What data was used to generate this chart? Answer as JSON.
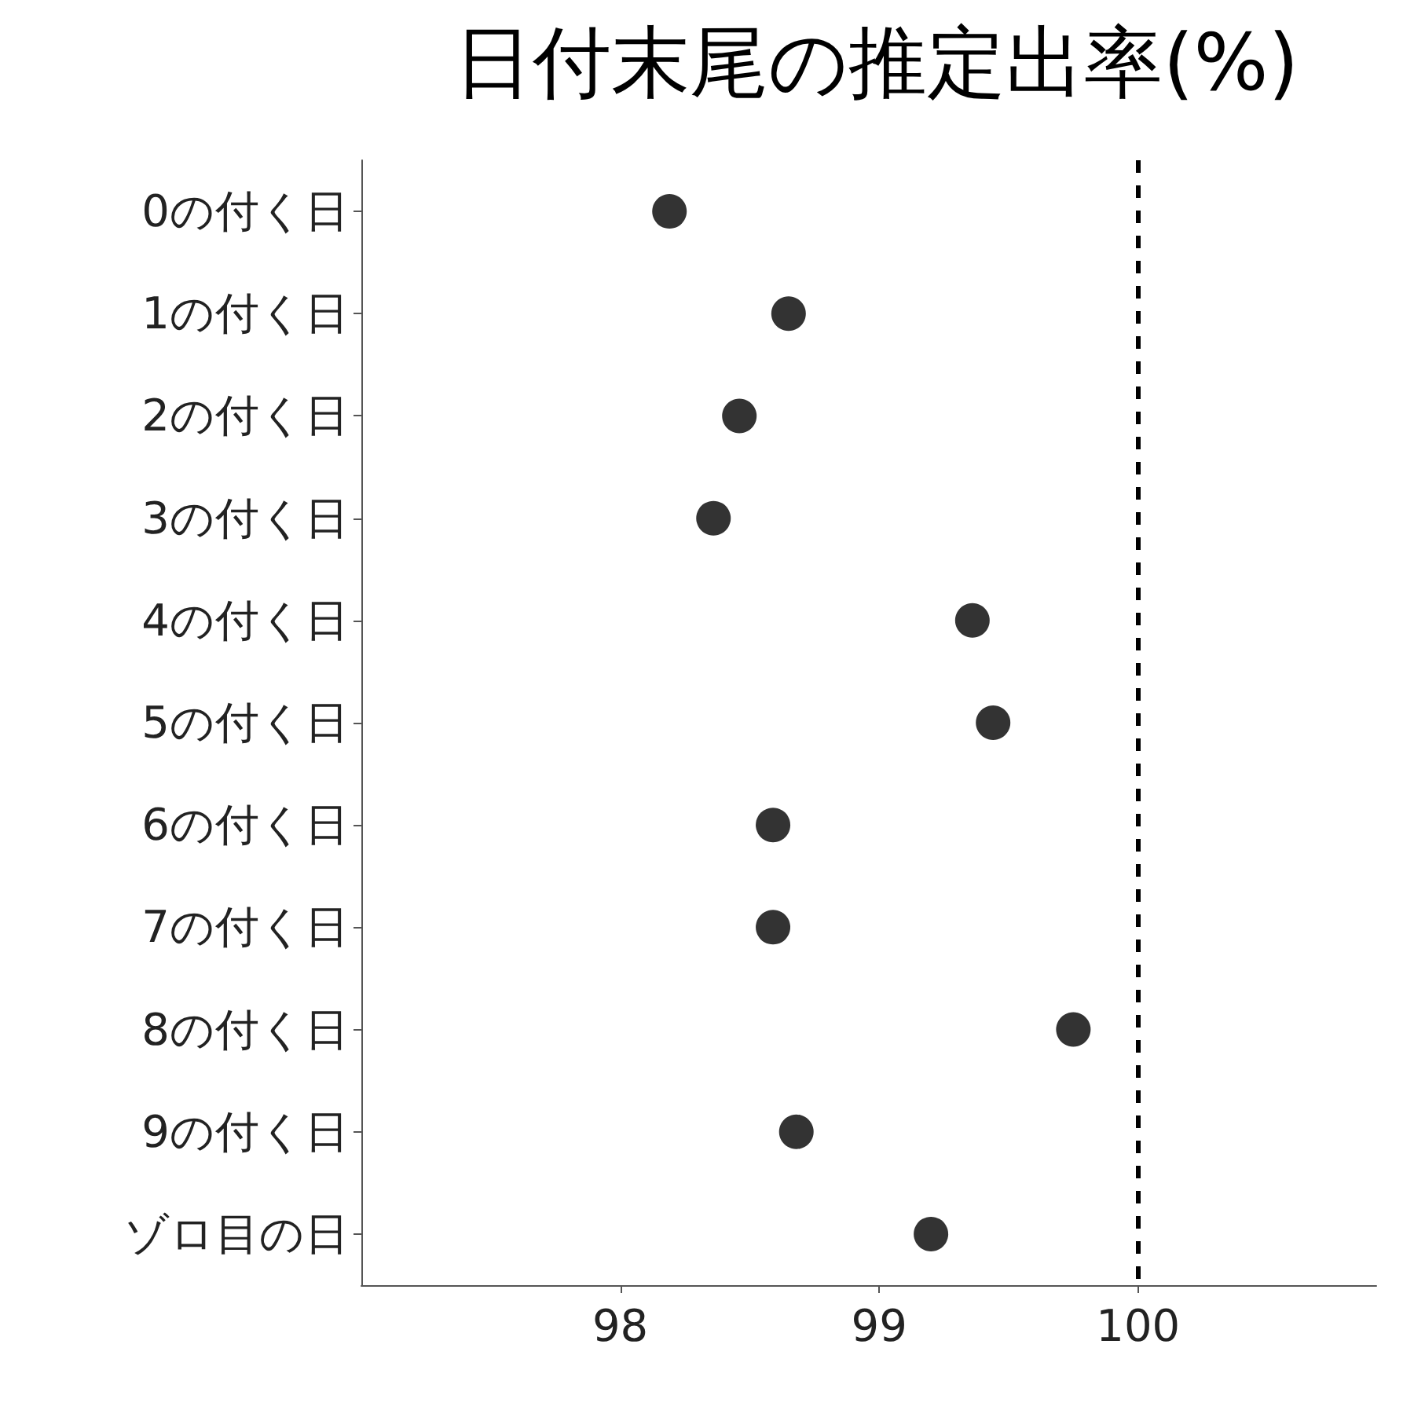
{
  "chart_data": {
    "type": "scatter",
    "title": "日付末尾の推定出率(%)",
    "orientation": "horizontal",
    "categories": [
      "0の付く日",
      "1の付く日",
      "2の付く日",
      "3の付く日",
      "4の付く日",
      "5の付く日",
      "6の付く日",
      "7の付く日",
      "8の付く日",
      "9の付く日",
      "ゾロ目の日"
    ],
    "values": [
      98.19,
      98.65,
      98.46,
      98.36,
      99.36,
      99.44,
      98.59,
      98.59,
      99.75,
      98.68,
      99.2
    ],
    "color": "#000000",
    "marker": "circle",
    "grid": false,
    "xlim": [
      97.0,
      100.92
    ],
    "xticks": [
      98,
      99,
      100
    ],
    "ref_lines": [
      {
        "axis": "x",
        "value": 100,
        "line_style": "dashed",
        "color": "#000000"
      }
    ]
  }
}
